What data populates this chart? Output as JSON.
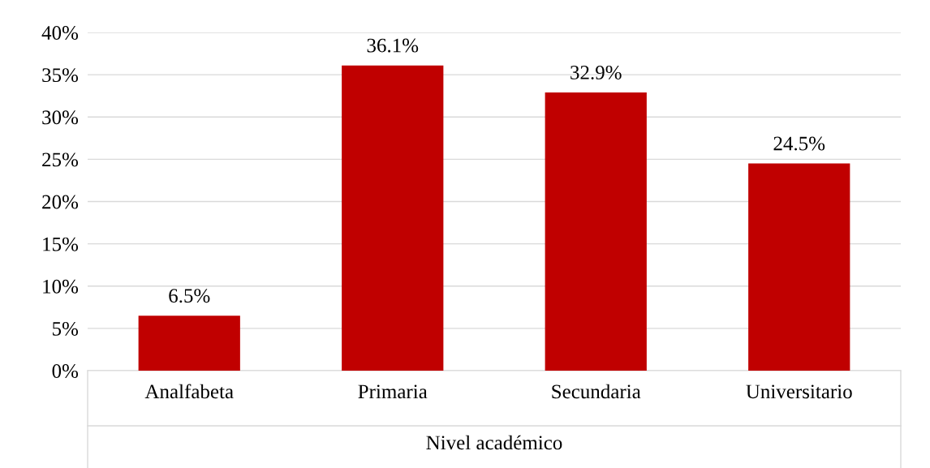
{
  "chart_data": {
    "type": "bar",
    "xlabel": "Nivel académico",
    "categories": [
      "Analfabeta",
      "Primaria",
      "Secundaria",
      "Universitario"
    ],
    "values": [
      6.5,
      36.1,
      32.9,
      24.5
    ],
    "color": "#c00000",
    "value_labels": [
      "6.5%",
      "36.1%",
      "32.9%",
      "24.5%"
    ],
    "ylim": [
      0,
      40
    ],
    "yticks": [
      {
        "value": 0,
        "label": "0%"
      },
      {
        "value": 5,
        "label": "5%"
      },
      {
        "value": 10,
        "label": "10%"
      },
      {
        "value": 15,
        "label": "15%"
      },
      {
        "value": 20,
        "label": "20%"
      },
      {
        "value": 25,
        "label": "25%"
      },
      {
        "value": 30,
        "label": "30%"
      },
      {
        "value": 35,
        "label": "35%"
      },
      {
        "value": 40,
        "label": "40%"
      }
    ],
    "grid": "y",
    "legend": false
  }
}
